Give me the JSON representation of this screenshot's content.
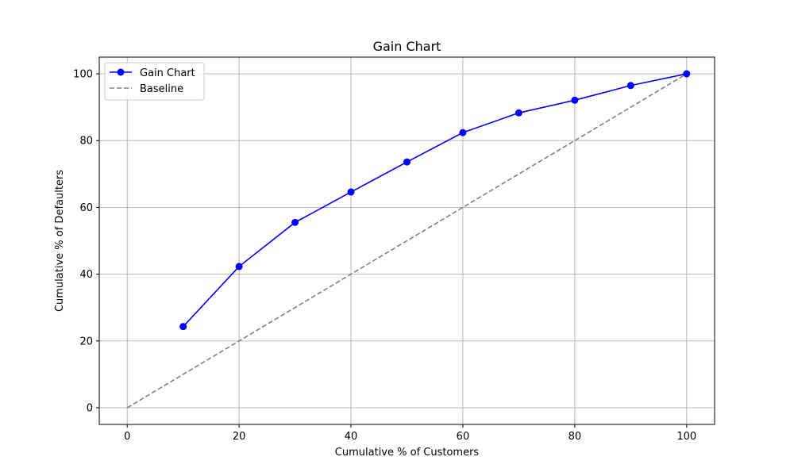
{
  "chart_data": {
    "type": "line",
    "title": "Gain Chart",
    "xlabel": "Cumulative % of Customers",
    "ylabel": "Cumulative % of Defaulters",
    "xlim": [
      -5,
      105
    ],
    "ylim": [
      -5,
      105
    ],
    "xticks": [
      0,
      20,
      40,
      60,
      80,
      100
    ],
    "yticks": [
      0,
      20,
      40,
      60,
      80,
      100
    ],
    "grid": true,
    "legend_position": "top-left",
    "series": [
      {
        "name": "Gain Chart",
        "color": "#0000ff",
        "style": "solid",
        "marker": "circle",
        "x": [
          10,
          20,
          30,
          40,
          50,
          60,
          70,
          80,
          90,
          100
        ],
        "y": [
          24.3,
          42.3,
          55.5,
          64.6,
          73.6,
          82.4,
          88.3,
          92.1,
          96.5,
          100
        ]
      },
      {
        "name": "Baseline",
        "color": "#808080",
        "style": "dashed",
        "marker": "none",
        "x": [
          0,
          100
        ],
        "y": [
          0,
          100
        ]
      }
    ]
  }
}
